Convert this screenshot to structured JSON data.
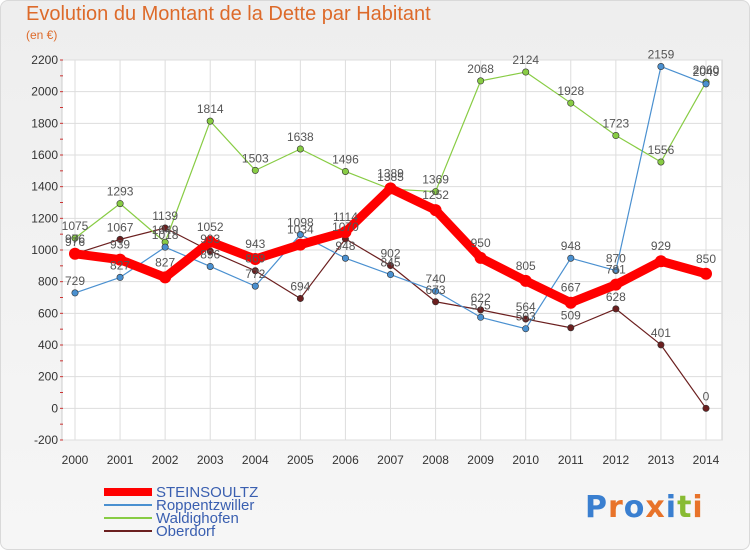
{
  "chart_data": {
    "type": "line",
    "title": "Evolution du Montant de la Dette par Habitant",
    "subtitle": "(en €)",
    "x": [
      "2000",
      "2001",
      "2002",
      "2003",
      "2004",
      "2005",
      "2006",
      "2007",
      "2008",
      "2009",
      "2010",
      "2011",
      "2012",
      "2013",
      "2014"
    ],
    "ylim": [
      -200,
      2200
    ],
    "yticks": [
      -200,
      0,
      200,
      400,
      600,
      800,
      1000,
      1200,
      1400,
      1600,
      1800,
      2000,
      2200
    ],
    "grid": true,
    "legend_position": "bottom-left",
    "series": [
      {
        "name": "STEINSOULTZ",
        "color": "#ff0000",
        "values": [
          976,
          939,
          827,
          1052,
          943,
          1034,
          1114,
          1389,
          1252,
          950,
          805,
          667,
          781,
          929,
          850
        ]
      },
      {
        "name": "Roppentzwiller",
        "color": "#4a90d0",
        "values": [
          729,
          827,
          1018,
          896,
          772,
          1098,
          948,
          845,
          740,
          575,
          503,
          948,
          870,
          2159,
          2049
        ]
      },
      {
        "name": "Waldighofen",
        "color": "#88cc44",
        "values": [
          1075,
          1293,
          1049,
          1814,
          1503,
          1638,
          1496,
          1385,
          1369,
          2068,
          2124,
          1928,
          1723,
          1556,
          2060
        ]
      },
      {
        "name": "Oberdorf",
        "color": "#6b1f1f",
        "values": [
          976,
          1067,
          1139,
          993,
          869,
          694,
          1070,
          902,
          673,
          622,
          564,
          509,
          628,
          401,
          0
        ]
      }
    ]
  },
  "logo": {
    "text": "Proxiti",
    "colors": [
      "#3a7fd0",
      "#e8732a",
      "#3a7fd0",
      "#e8732a",
      "#3a7fd0",
      "#88bb33",
      "#e8732a"
    ]
  }
}
